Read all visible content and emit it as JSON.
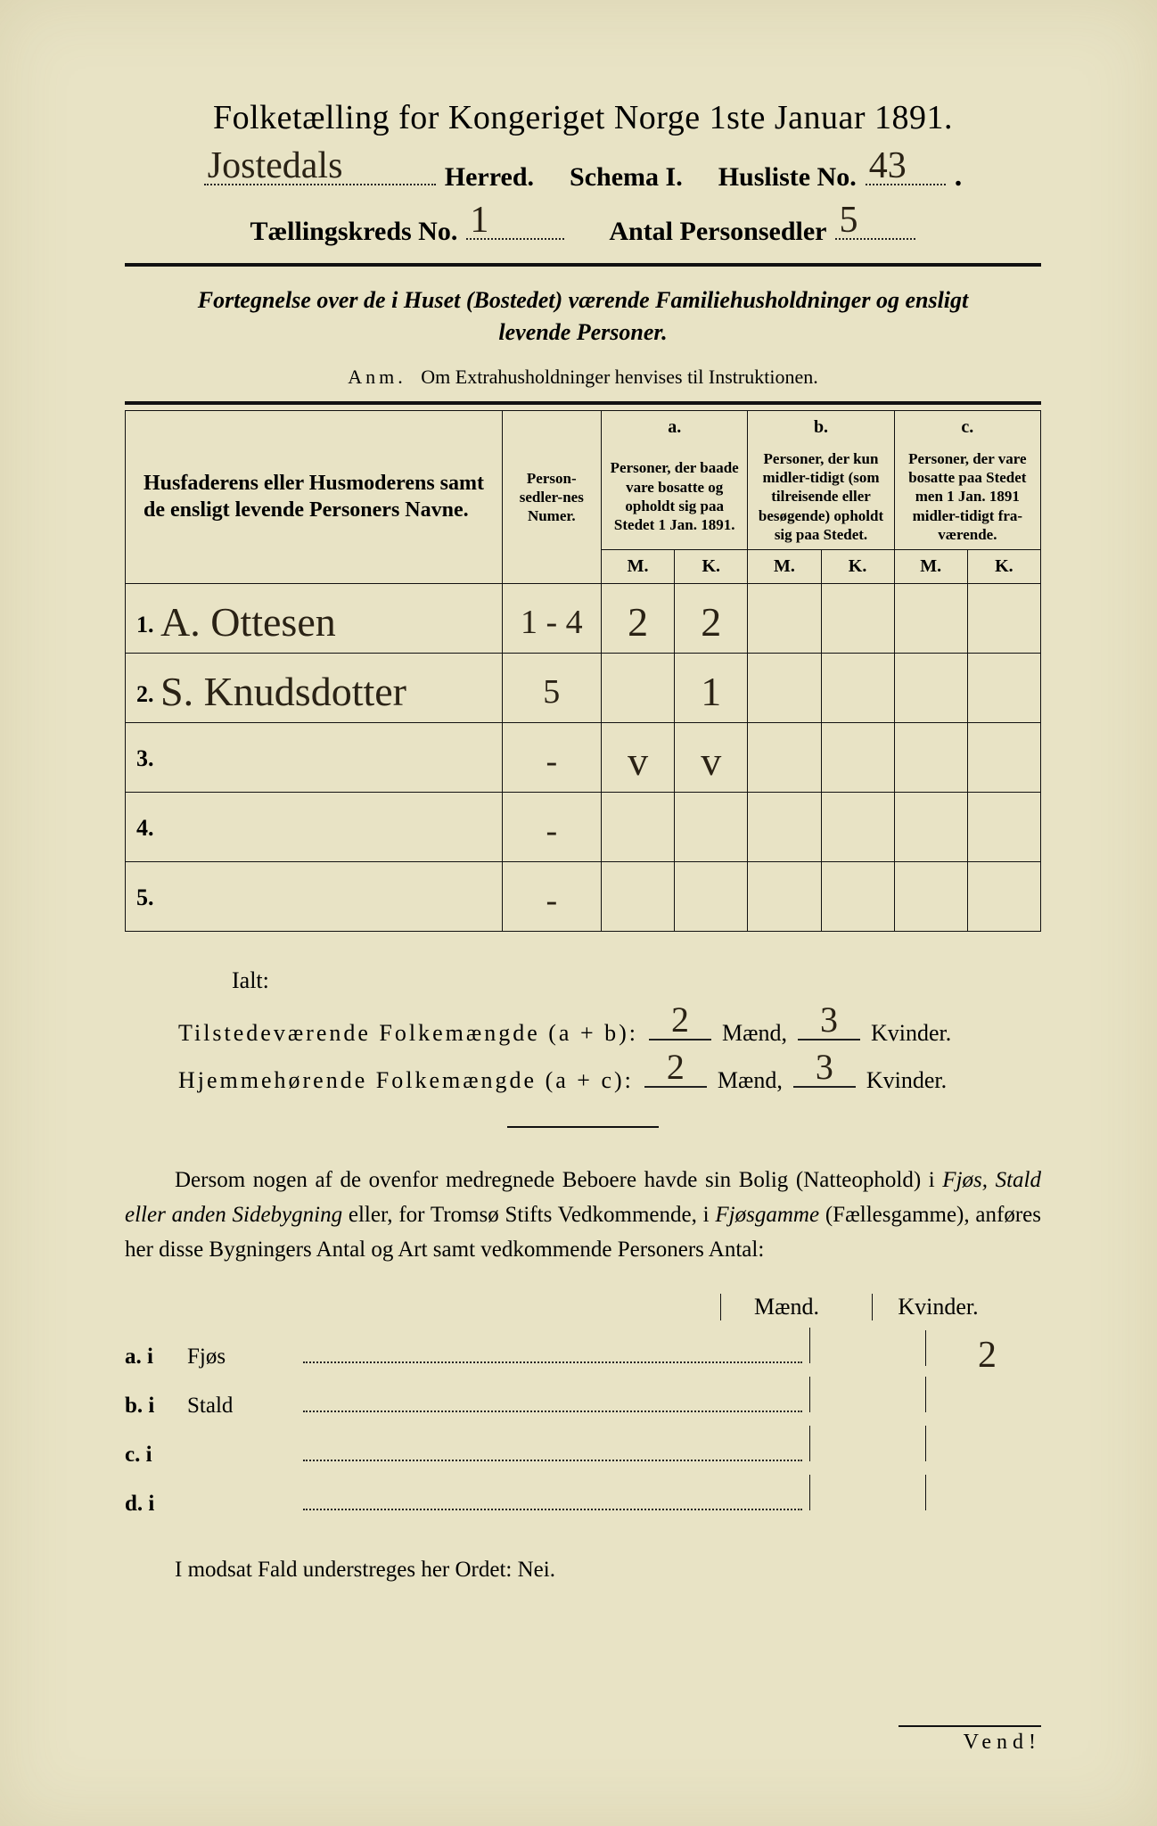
{
  "header": {
    "title": "Folketælling for Kongeriget Norge 1ste Januar 1891.",
    "herred_hw": "Jostedals",
    "herred_label": "Herred.",
    "schema_label": "Schema I.",
    "husliste_label": "Husliste No.",
    "husliste_hw": "43",
    "taellingskreds_label": "Tællingskreds No.",
    "taellingskreds_hw": "1",
    "antal_label": "Antal Personsedler",
    "antal_hw": "5"
  },
  "subtitle_line1": "Fortegnelse over de i Huset (Bostedet) værende Familiehusholdninger og ensligt",
  "subtitle_line2": "levende Personer.",
  "anm_label": "Anm.",
  "anm_text": "Om Extrahusholdninger henvises til Instruktionen.",
  "table": {
    "col_name": "Husfaderens eller Husmoderens samt de ensligt levende Personers Navne.",
    "col_numer": "Person-sedler-nes Numer.",
    "col_a_label": "a.",
    "col_a_text": "Personer, der baade vare bosatte og opholdt sig paa Stedet 1 Jan. 1891.",
    "col_b_label": "b.",
    "col_b_text": "Personer, der kun midler-tidigt (som tilreisende eller besøgende) opholdt sig paa Stedet.",
    "col_c_label": "c.",
    "col_c_text": "Personer, der vare bosatte paa Stedet men 1 Jan. 1891 midler-tidigt fra-værende.",
    "mk_m": "M.",
    "mk_k": "K.",
    "rows": [
      {
        "num": "1.",
        "name_hw": "A. Ottesen",
        "numer_hw": "1 - 4",
        "a_m": "2",
        "a_k": "2",
        "b_m": "",
        "b_k": "",
        "c_m": "",
        "c_k": ""
      },
      {
        "num": "2.",
        "name_hw": "S. Knudsdotter",
        "numer_hw": "5",
        "a_m": "",
        "a_k": "1",
        "b_m": "",
        "b_k": "",
        "c_m": "",
        "c_k": ""
      },
      {
        "num": "3.",
        "name_hw": "",
        "numer_hw": "-",
        "a_m": "v",
        "a_k": "v",
        "b_m": "",
        "b_k": "",
        "c_m": "",
        "c_k": ""
      },
      {
        "num": "4.",
        "name_hw": "",
        "numer_hw": "-",
        "a_m": "",
        "a_k": "",
        "b_m": "",
        "b_k": "",
        "c_m": "",
        "c_k": ""
      },
      {
        "num": "5.",
        "name_hw": "",
        "numer_hw": "-",
        "a_m": "",
        "a_k": "",
        "b_m": "",
        "b_k": "",
        "c_m": "",
        "c_k": ""
      }
    ]
  },
  "ialt": {
    "heading": "Ialt:",
    "line1_label": "Tilstedeværende Folkemængde (a + b):",
    "line1_m": "2",
    "line1_k": "3",
    "line2_label": "Hjemmehørende Folkemængde (a + c):",
    "line2_m": "2",
    "line2_k": "3",
    "maend": "Mænd,",
    "kvinder": "Kvinder."
  },
  "paragraph": "Dersom nogen af de ovenfor medregnede Beboere havde sin Bolig (Natteophold) i Fjøs, Stald eller anden Sidebygning eller, for Tromsø Stifts Vedkommende, i Fjøsgamme (Fællesgamme), anføres her disse Bygningers Antal og Art samt vedkommende Personers Antal:",
  "mk_head": {
    "m": "Mænd.",
    "k": "Kvinder."
  },
  "building_rows": [
    {
      "lead": "a.  i",
      "label": "Fjøs",
      "m": "",
      "k": "2"
    },
    {
      "lead": "b.  i",
      "label": "Stald",
      "m": "",
      "k": ""
    },
    {
      "lead": "c.  i",
      "label": "",
      "m": "",
      "k": ""
    },
    {
      "lead": "d.  i",
      "label": "",
      "m": "",
      "k": ""
    }
  ],
  "nei_line": "I modsat Fald understreges her Ordet: Nei.",
  "vend": "Vend!",
  "colors": {
    "paper": "#e8e3c5",
    "ink": "#111111",
    "handwriting": "#2a2215"
  }
}
